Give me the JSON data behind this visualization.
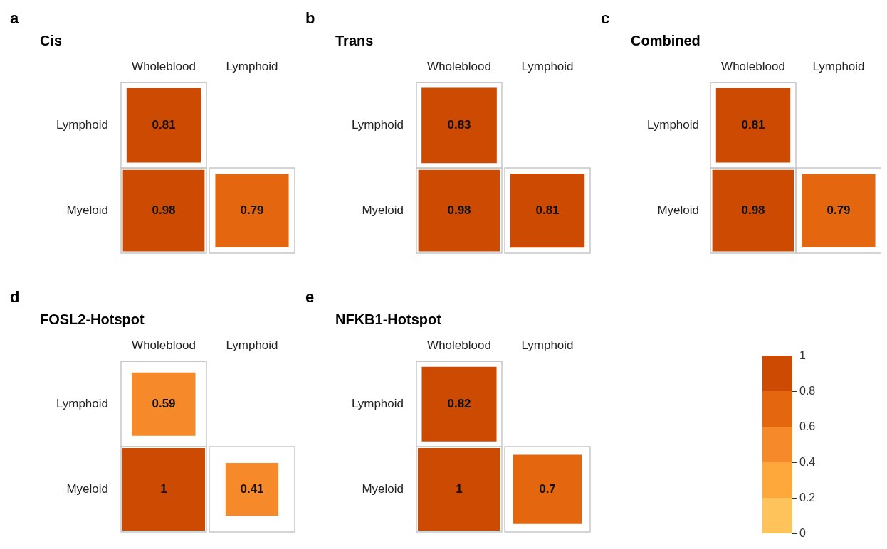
{
  "chart_data": [
    {
      "type": "heatmap",
      "title": "Cis",
      "annotations": [
        "a"
      ],
      "categories": [
        "Wholeblood",
        "Lymphoid"
      ],
      "y_categories": [
        "Lymphoid",
        "Myeloid"
      ],
      "cells": [
        [
          0.81,
          null
        ],
        [
          0.98,
          0.79
        ]
      ],
      "data_labels": true
    },
    {
      "type": "heatmap",
      "title": "Trans",
      "annotations": [
        "b"
      ],
      "categories": [
        "Wholeblood",
        "Lymphoid"
      ],
      "y_categories": [
        "Lymphoid",
        "Myeloid"
      ],
      "cells": [
        [
          0.83,
          null
        ],
        [
          0.98,
          0.81
        ]
      ],
      "data_labels": true
    },
    {
      "type": "heatmap",
      "title": "Combined",
      "annotations": [
        "c"
      ],
      "categories": [
        "Wholeblood",
        "Lymphoid"
      ],
      "y_categories": [
        "Lymphoid",
        "Myeloid"
      ],
      "cells": [
        [
          0.81,
          null
        ],
        [
          0.98,
          0.79
        ]
      ],
      "data_labels": true
    },
    {
      "type": "heatmap",
      "title": "FOSL2-Hotspot",
      "annotations": [
        "d"
      ],
      "categories": [
        "Wholeblood",
        "Lymphoid"
      ],
      "y_categories": [
        "Lymphoid",
        "Myeloid"
      ],
      "cells": [
        [
          0.59,
          null
        ],
        [
          1,
          0.41
        ]
      ],
      "data_labels": true
    },
    {
      "type": "heatmap",
      "title": "NFKB1-Hotspot",
      "annotations": [
        "e"
      ],
      "categories": [
        "Wholeblood",
        "Lymphoid"
      ],
      "y_categories": [
        "Lymphoid",
        "Myeloid"
      ],
      "cells": [
        [
          0.82,
          null
        ],
        [
          1,
          0.7
        ]
      ],
      "data_labels": true,
      "clim": [
        0,
        1
      ],
      "cticks": [
        0,
        0.2,
        0.4,
        0.6,
        0.8,
        1
      ]
    }
  ]
}
